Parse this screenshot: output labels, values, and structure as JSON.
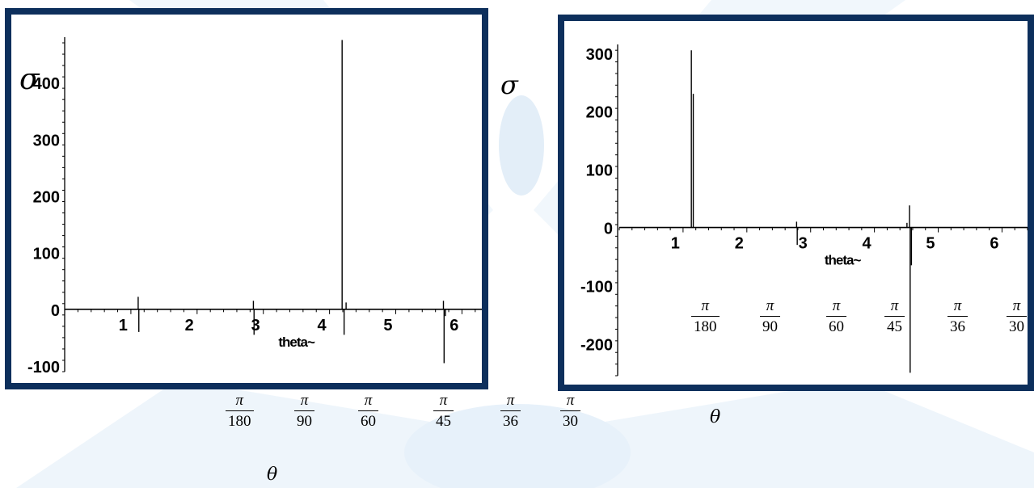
{
  "symbols": {
    "sigma": "σ",
    "theta": "θ"
  },
  "fractions": {
    "bottom_row": [
      {
        "num": "π",
        "den": "180"
      },
      {
        "num": "π",
        "den": "90"
      },
      {
        "num": "π",
        "den": "60"
      },
      {
        "num": "π",
        "den": "45"
      },
      {
        "num": "π",
        "den": "36"
      },
      {
        "num": "π",
        "den": "30"
      }
    ],
    "right_row": [
      {
        "num": "π",
        "den": "180"
      },
      {
        "num": "π",
        "den": "90"
      },
      {
        "num": "π",
        "den": "60"
      },
      {
        "num": "π",
        "den": "45"
      },
      {
        "num": "π",
        "den": "36"
      },
      {
        "num": "π",
        "den": "30"
      }
    ]
  },
  "colors": {
    "frame": "#0d2f5c",
    "background_shape": "#eef5fb",
    "plot_line": "#000000"
  },
  "chart_data": [
    {
      "type": "line",
      "title": "",
      "xlabel": "theta~",
      "ylabel": "σ",
      "xlim": [
        0,
        6.3
      ],
      "ylim": [
        -110,
        480
      ],
      "xticks": [
        1,
        2,
        3,
        4,
        5,
        6
      ],
      "yticks": [
        -100,
        0,
        100,
        200,
        300,
        400
      ],
      "grid": false,
      "baseline": 0,
      "spikes": [
        {
          "x": 1.11,
          "y": 22
        },
        {
          "x": 1.12,
          "y": -40
        },
        {
          "x": 2.85,
          "y": 15
        },
        {
          "x": 2.86,
          "y": -45
        },
        {
          "x": 4.19,
          "y": 475
        },
        {
          "x": 4.22,
          "y": -45
        },
        {
          "x": 4.25,
          "y": 12
        },
        {
          "x": 5.72,
          "y": 15
        },
        {
          "x": 5.73,
          "y": -95
        },
        {
          "x": 5.75,
          "y": -12
        }
      ]
    },
    {
      "type": "line",
      "title": "",
      "xlabel": "theta~",
      "ylabel": "",
      "xlim": [
        0,
        6.4
      ],
      "ylim": [
        -255,
        315
      ],
      "xticks": [
        1,
        2,
        3,
        4,
        5,
        6
      ],
      "yticks": [
        -200,
        -100,
        0,
        100,
        200,
        300
      ],
      "grid": false,
      "baseline": 0,
      "spikes": [
        {
          "x": 1.13,
          "y": 305
        },
        {
          "x": 1.16,
          "y": 230
        },
        {
          "x": 2.78,
          "y": 10
        },
        {
          "x": 2.79,
          "y": -30
        },
        {
          "x": 4.51,
          "y": 8
        },
        {
          "x": 4.55,
          "y": 38
        },
        {
          "x": 4.56,
          "y": -250
        },
        {
          "x": 4.58,
          "y": -65
        }
      ]
    }
  ]
}
